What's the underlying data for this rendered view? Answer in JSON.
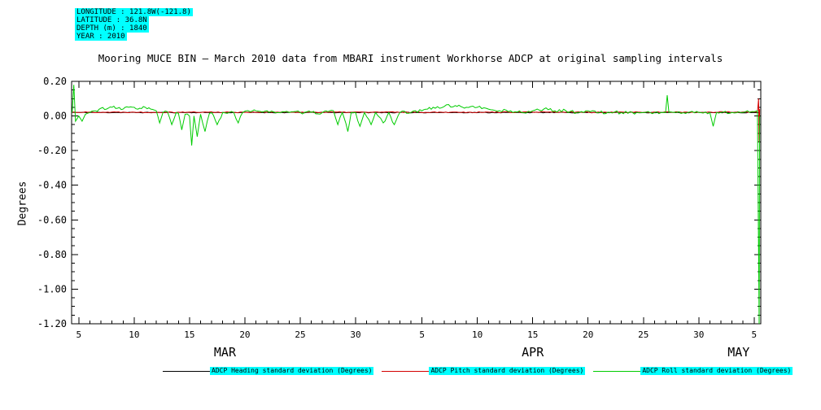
{
  "info_box": {
    "highlight_color": "#00ffff",
    "lines": [
      "LONGITUDE : 121.8W(-121.8)",
      "LATITUDE : 36.8N",
      "DEPTH (m) : 1840",
      "YEAR : 2010"
    ]
  },
  "chart_data": {
    "type": "line",
    "title": "Mooring MUCE BIN — March 2010 data from MBARI instrument Workhorse ADCP at original sampling intervals",
    "ylabel": "Degrees",
    "xlabel": "",
    "ylim": [
      -1.2,
      0.2
    ],
    "xlim": [
      4.35,
      66.6
    ],
    "x_unit": "days (Mar 1 = day 1, Apr 1 = day 32, May 1 = day 62)",
    "grid": false,
    "legend_position": "bottom",
    "ytick_labels": [
      "0.20",
      "0.00",
      "-0.20",
      "-0.40",
      "-0.60",
      "-0.80",
      "-1.00",
      "-1.20"
    ],
    "ytick_values": [
      0.2,
      0.0,
      -0.2,
      -0.4,
      -0.6,
      -0.8,
      -1.0,
      -1.2
    ],
    "xticks": [
      {
        "day": 5,
        "label": "5"
      },
      {
        "day": 10,
        "label": "10"
      },
      {
        "day": 15,
        "label": "15"
      },
      {
        "day": 20,
        "label": "20"
      },
      {
        "day": 25,
        "label": "25"
      },
      {
        "day": 30,
        "label": "30"
      },
      {
        "day": 36,
        "label": "5"
      },
      {
        "day": 41,
        "label": "10"
      },
      {
        "day": 46,
        "label": "15"
      },
      {
        "day": 51,
        "label": "20"
      },
      {
        "day": 56,
        "label": "25"
      },
      {
        "day": 61,
        "label": "30"
      },
      {
        "day": 66,
        "label": "5"
      }
    ],
    "month_labels": [
      {
        "label": "MAR",
        "day": 18.2
      },
      {
        "label": "APR",
        "day": 46.0
      },
      {
        "label": "MAY",
        "day": 64.6
      }
    ],
    "series": [
      {
        "name": "ADCP Heading standard deviation (Degrees)",
        "color": "#000000",
        "noise": 0.002,
        "seed": 11,
        "points": [
          [
            4.4,
            0.02
          ],
          [
            66.5,
            0.02
          ]
        ]
      },
      {
        "name": "ADCP Pitch standard deviation (Degrees)",
        "color": "#d40000",
        "noise": 0.003,
        "seed": 22,
        "points": [
          [
            4.4,
            0.022
          ],
          [
            66.3,
            0.022
          ],
          [
            66.4,
            0.1
          ],
          [
            66.45,
            -0.15
          ],
          [
            66.5,
            0.04
          ]
        ]
      },
      {
        "name": "ADCP Roll standard deviation (Degrees)",
        "color": "#00cc00",
        "noise": 0.009,
        "seed": 33,
        "points": [
          [
            4.4,
            0.02
          ],
          [
            4.55,
            0.18
          ],
          [
            4.7,
            -0.03
          ],
          [
            5.0,
            0.0
          ],
          [
            5.3,
            -0.03
          ],
          [
            5.6,
            0.01
          ],
          [
            6.0,
            0.02
          ],
          [
            6.5,
            0.03
          ],
          [
            7.0,
            0.045
          ],
          [
            7.5,
            0.04
          ],
          [
            8.0,
            0.05
          ],
          [
            8.5,
            0.045
          ],
          [
            9.0,
            0.04
          ],
          [
            9.5,
            0.05
          ],
          [
            10.0,
            0.05
          ],
          [
            10.5,
            0.045
          ],
          [
            11.0,
            0.05
          ],
          [
            11.5,
            0.04
          ],
          [
            12.0,
            0.03
          ],
          [
            12.3,
            -0.04
          ],
          [
            12.6,
            0.02
          ],
          [
            13.0,
            0.025
          ],
          [
            13.4,
            -0.05
          ],
          [
            13.8,
            0.02
          ],
          [
            14.0,
            0.015
          ],
          [
            14.3,
            -0.08
          ],
          [
            14.6,
            0.01
          ],
          [
            15.0,
            0.0
          ],
          [
            15.2,
            -0.17
          ],
          [
            15.4,
            0.0
          ],
          [
            15.7,
            -0.12
          ],
          [
            16.0,
            0.01
          ],
          [
            16.4,
            -0.09
          ],
          [
            16.8,
            0.015
          ],
          [
            17.0,
            0.02
          ],
          [
            17.5,
            -0.05
          ],
          [
            18.0,
            0.02
          ],
          [
            19.0,
            0.02
          ],
          [
            19.4,
            -0.04
          ],
          [
            19.8,
            0.02
          ],
          [
            20.5,
            0.025
          ],
          [
            21.0,
            0.03
          ],
          [
            22.0,
            0.03
          ],
          [
            23.0,
            0.02
          ],
          [
            24.0,
            0.02
          ],
          [
            25.0,
            0.02
          ],
          [
            26.0,
            0.02
          ],
          [
            27.0,
            0.02
          ],
          [
            27.5,
            0.025
          ],
          [
            28.0,
            0.03
          ],
          [
            28.4,
            -0.05
          ],
          [
            28.8,
            0.02
          ],
          [
            29.3,
            -0.09
          ],
          [
            29.6,
            0.02
          ],
          [
            30.0,
            0.02
          ],
          [
            30.4,
            -0.06
          ],
          [
            30.8,
            0.02
          ],
          [
            31.4,
            -0.05
          ],
          [
            31.8,
            0.02
          ],
          [
            32.5,
            -0.04
          ],
          [
            33.0,
            0.02
          ],
          [
            33.5,
            -0.05
          ],
          [
            34.0,
            0.02
          ],
          [
            35.0,
            0.02
          ],
          [
            36.0,
            0.03
          ],
          [
            36.5,
            0.04
          ],
          [
            37.0,
            0.05
          ],
          [
            38.0,
            0.055
          ],
          [
            39.0,
            0.06
          ],
          [
            39.5,
            0.055
          ],
          [
            40.0,
            0.05
          ],
          [
            41.0,
            0.05
          ],
          [
            42.0,
            0.04
          ],
          [
            43.0,
            0.03
          ],
          [
            44.0,
            0.03
          ],
          [
            45.0,
            0.02
          ],
          [
            46.0,
            0.03
          ],
          [
            47.0,
            0.04
          ],
          [
            48.0,
            0.03
          ],
          [
            49.0,
            0.03
          ],
          [
            50.0,
            0.02
          ],
          [
            51.0,
            0.03
          ],
          [
            52.0,
            0.02
          ],
          [
            53.0,
            0.02
          ],
          [
            54.0,
            0.02
          ],
          [
            55.0,
            0.02
          ],
          [
            56.0,
            0.02
          ],
          [
            57.0,
            0.02
          ],
          [
            58.0,
            0.02
          ],
          [
            58.15,
            0.12
          ],
          [
            58.3,
            0.02
          ],
          [
            59.0,
            0.02
          ],
          [
            60.0,
            0.02
          ],
          [
            61.0,
            0.02
          ],
          [
            62.0,
            0.02
          ],
          [
            62.3,
            -0.06
          ],
          [
            62.6,
            0.02
          ],
          [
            63.0,
            0.02
          ],
          [
            64.0,
            0.02
          ],
          [
            65.0,
            0.02
          ],
          [
            66.0,
            0.025
          ],
          [
            66.3,
            0.03
          ],
          [
            66.45,
            -1.2
          ],
          [
            66.5,
            0.0
          ]
        ]
      }
    ]
  }
}
